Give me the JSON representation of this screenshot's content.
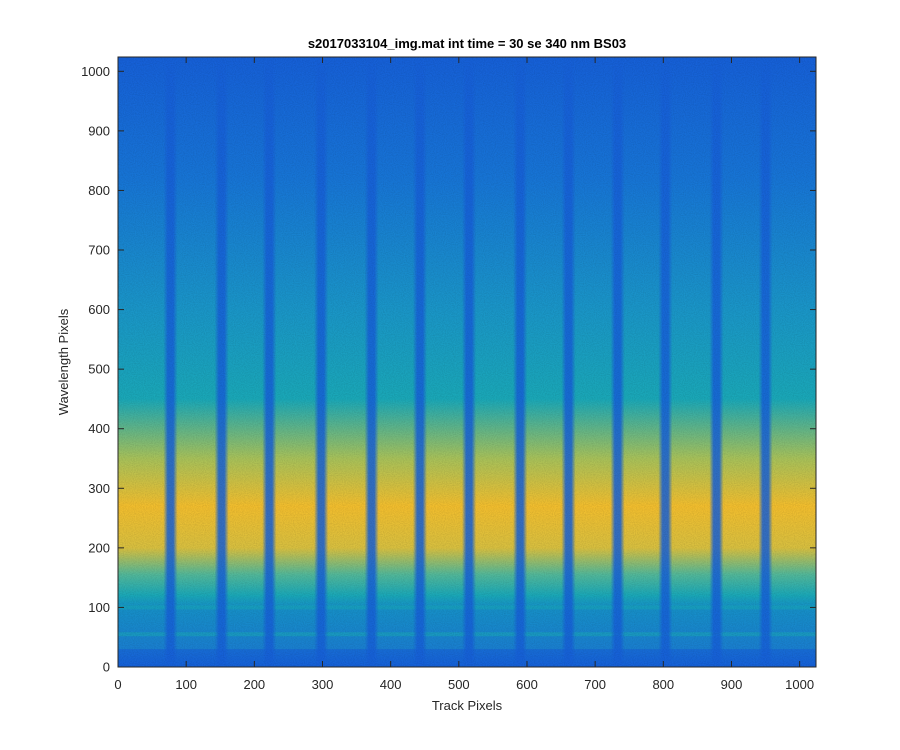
{
  "chart_data": {
    "type": "heatmap",
    "title": "s2017033104_img.mat int time = 30 se  340 nm BS03",
    "xlabel": "Track Pixels",
    "ylabel": "Wavelength Pixels",
    "xlim": [
      0,
      1024
    ],
    "ylim": [
      0,
      1024
    ],
    "xticks": [
      0,
      100,
      200,
      300,
      400,
      500,
      600,
      700,
      800,
      900,
      1000
    ],
    "yticks": [
      0,
      100,
      200,
      300,
      400,
      500,
      600,
      700,
      800,
      900,
      1000
    ],
    "grid": false,
    "colormap": "parula",
    "dark_vertical_stripe_x": [
      77,
      152,
      222,
      298,
      372,
      443,
      515,
      590,
      661,
      733,
      803,
      878,
      950
    ],
    "bright_band_center_y": 270,
    "thin_horizontal_lines_y": [
      55,
      100
    ],
    "colors": {
      "low": "#1660d8",
      "mid": "#1aa8b8",
      "high": "#f2be2e",
      "axis": "#262626"
    }
  }
}
